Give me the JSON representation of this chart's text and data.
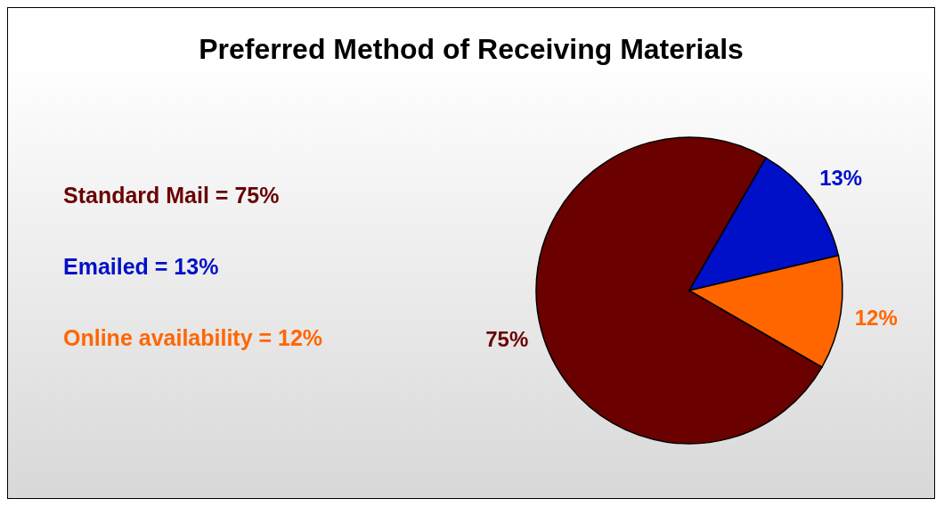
{
  "chart_data": {
    "type": "pie",
    "title": "Preferred Method of Receiving Materials",
    "categories": [
      null,
      null,
      null
    ],
    "values": [
      75,
      13,
      12
    ],
    "colors": [
      "#6a0000",
      "#0010c8",
      "#ff6600"
    ],
    "value_labels": [
      "75%",
      "13%",
      "12%"
    ],
    "annotations": [
      "Standard Mail = 75%",
      "Emailed = 13%",
      "Online availability = 12%"
    ]
  }
}
